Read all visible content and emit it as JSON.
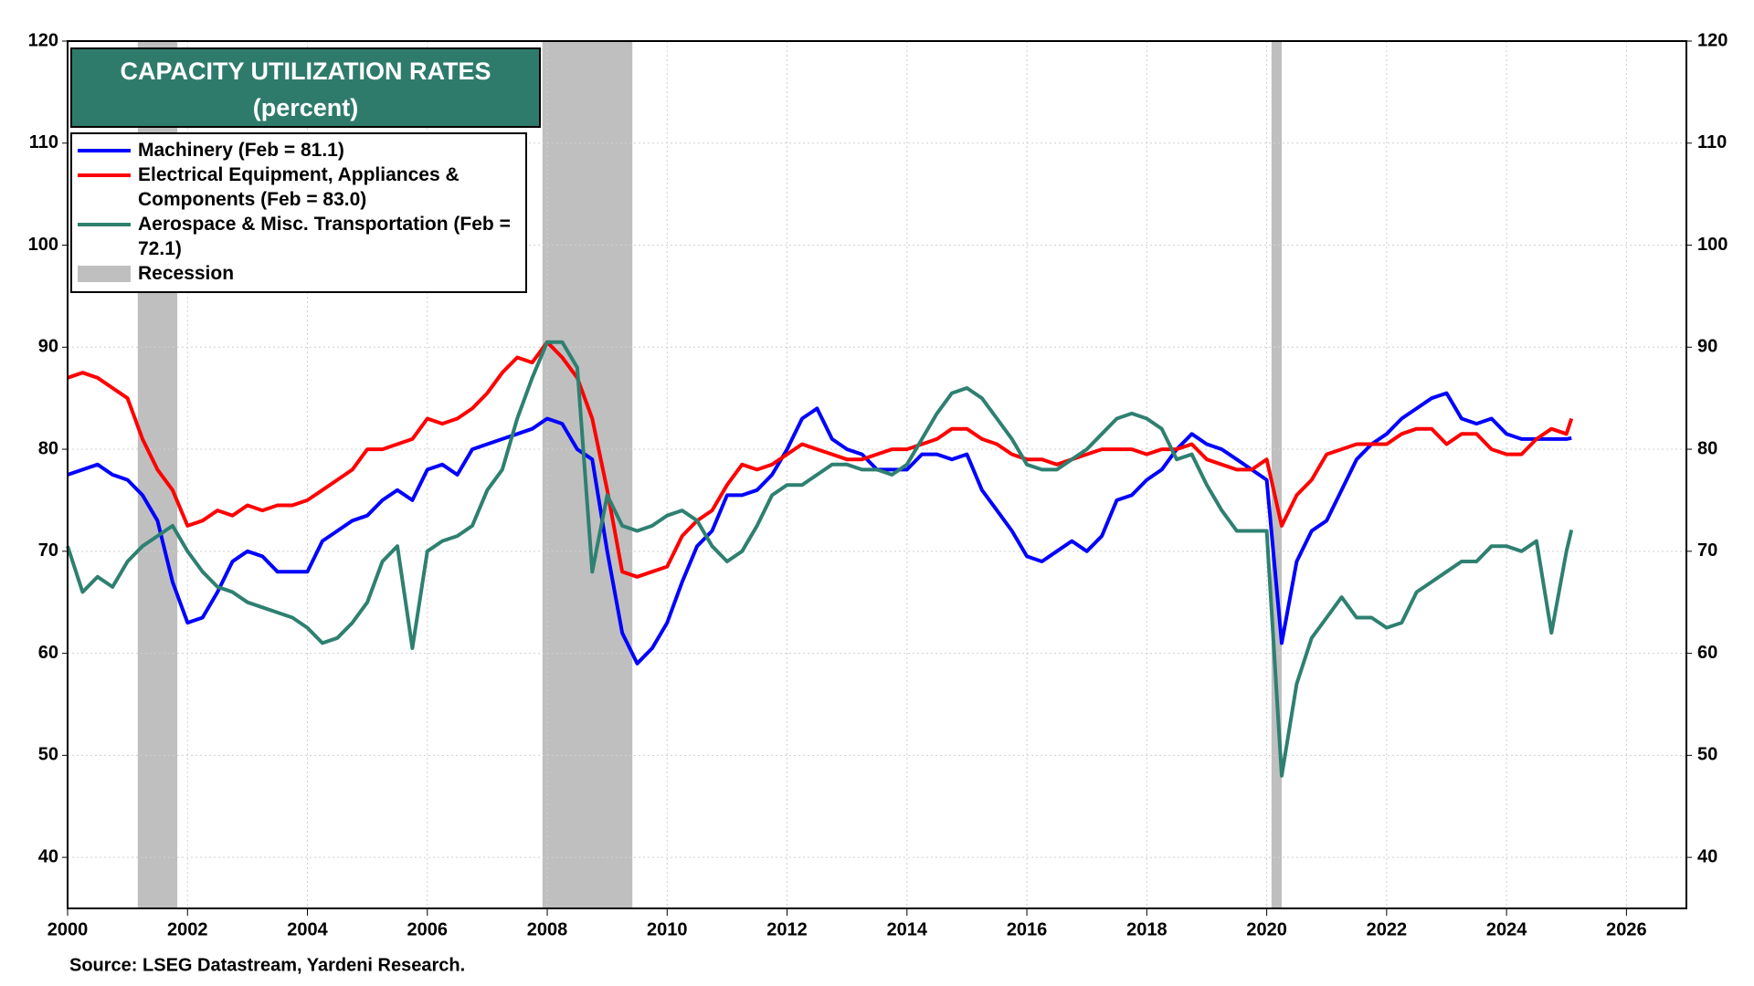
{
  "chart_data": {
    "type": "line",
    "title": "CAPACITY UTILIZATION RATES",
    "subtitle": "(percent)",
    "source": "Source: LSEG Datastream, Yardeni Research.",
    "x": [
      2000,
      2000.25,
      2000.5,
      2000.75,
      2001,
      2001.25,
      2001.5,
      2001.75,
      2002,
      2002.25,
      2002.5,
      2002.75,
      2003,
      2003.25,
      2003.5,
      2003.75,
      2004,
      2004.25,
      2004.5,
      2004.75,
      2005,
      2005.25,
      2005.5,
      2005.75,
      2006,
      2006.25,
      2006.5,
      2006.75,
      2007,
      2007.25,
      2007.5,
      2007.75,
      2008,
      2008.25,
      2008.5,
      2008.75,
      2009,
      2009.25,
      2009.5,
      2009.75,
      2010,
      2010.25,
      2010.5,
      2010.75,
      2011,
      2011.25,
      2011.5,
      2011.75,
      2012,
      2012.25,
      2012.5,
      2012.75,
      2013,
      2013.25,
      2013.5,
      2013.75,
      2014,
      2014.25,
      2014.5,
      2014.75,
      2015,
      2015.25,
      2015.5,
      2015.75,
      2016,
      2016.25,
      2016.5,
      2016.75,
      2017,
      2017.25,
      2017.5,
      2017.75,
      2018,
      2018.25,
      2018.5,
      2018.75,
      2019,
      2019.25,
      2019.5,
      2019.75,
      2020,
      2020.25,
      2020.5,
      2020.75,
      2021,
      2021.25,
      2021.5,
      2021.75,
      2022,
      2022.25,
      2022.5,
      2022.75,
      2023,
      2023.25,
      2023.5,
      2023.75,
      2024,
      2024.25,
      2024.5,
      2024.75,
      2025,
      2025.083
    ],
    "series": [
      {
        "name": "Machinery (Feb = 81.1)",
        "color": "#0000ff",
        "values": [
          77.5,
          78,
          78.5,
          77.5,
          77,
          75.5,
          73,
          67,
          63,
          63.5,
          66,
          69,
          70,
          69.5,
          68,
          68,
          68,
          71,
          72,
          73,
          73.5,
          75,
          76,
          75,
          78,
          78.5,
          77.5,
          80,
          80.5,
          81,
          81.5,
          82,
          83,
          82.5,
          80,
          79,
          70,
          62,
          59,
          60.5,
          63,
          67,
          70.5,
          72,
          75.5,
          75.5,
          76,
          77.5,
          80,
          83,
          84,
          81,
          80,
          79.5,
          78,
          78,
          78,
          79.5,
          79.5,
          79,
          79.5,
          76,
          74,
          72,
          69.5,
          69,
          70,
          71,
          70,
          71.5,
          75,
          75.5,
          77,
          78,
          80,
          81.5,
          80.5,
          80,
          79,
          78,
          77,
          61,
          69,
          72,
          73,
          76,
          79,
          80.5,
          81.5,
          83,
          84,
          85,
          85.5,
          83,
          82.5,
          83,
          81.5,
          81,
          81,
          81,
          81,
          81.1
        ]
      },
      {
        "name": "Electrical Equipment, Appliances & Components (Feb = 83.0)",
        "color": "#ff0000",
        "values": [
          87,
          87.5,
          87,
          86,
          85,
          81,
          78,
          76,
          72.5,
          73,
          74,
          73.5,
          74.5,
          74,
          74.5,
          74.5,
          75,
          76,
          77,
          78,
          80,
          80,
          80.5,
          81,
          83,
          82.5,
          83,
          84,
          85.5,
          87.5,
          89,
          88.5,
          90.5,
          89,
          87,
          83,
          76,
          68,
          67.5,
          68,
          68.5,
          71.5,
          73,
          74,
          76.5,
          78.5,
          78,
          78.5,
          79.5,
          80.5,
          80,
          79.5,
          79,
          79,
          79.5,
          80,
          80,
          80.5,
          81,
          82,
          82,
          81,
          80.5,
          79.5,
          79,
          79,
          78.5,
          79,
          79.5,
          80,
          80,
          80,
          79.5,
          80,
          80,
          80.5,
          79,
          78.5,
          78,
          78,
          79,
          72.5,
          75.5,
          77,
          79.5,
          80,
          80.5,
          80.5,
          80.5,
          81.5,
          82,
          82,
          80.5,
          81.5,
          81.5,
          80,
          79.5,
          79.5,
          81,
          82,
          81.5,
          83
        ]
      },
      {
        "name": "Aerospace & Misc. Transportation (Feb = 72.1)",
        "color": "#2e8070",
        "values": [
          70.5,
          66,
          67.5,
          66.5,
          69,
          70.5,
          71.5,
          72.5,
          70,
          68,
          66.5,
          66,
          65,
          64.5,
          64,
          63.5,
          62.5,
          61,
          61.5,
          63,
          65,
          69,
          70.5,
          60.5,
          70,
          71,
          71.5,
          72.5,
          76,
          78,
          83,
          87,
          90.5,
          90.5,
          88,
          68,
          75.5,
          72.5,
          72,
          72.5,
          73.5,
          74,
          73,
          70.5,
          69,
          70,
          72.5,
          75.5,
          76.5,
          76.5,
          77.5,
          78.5,
          78.5,
          78,
          78,
          77.5,
          78.5,
          81,
          83.5,
          85.5,
          86,
          85,
          83,
          81,
          78.5,
          78,
          78,
          79,
          80,
          81.5,
          83,
          83.5,
          83,
          82,
          79,
          79.5,
          76.5,
          74,
          72,
          72,
          72,
          48,
          57,
          61.5,
          63.5,
          65.5,
          63.5,
          63.5,
          62.5,
          63,
          66,
          67,
          68,
          69,
          69,
          70.5,
          70.5,
          70,
          71,
          62,
          70,
          72.1
        ]
      }
    ],
    "recession_label": "Recession",
    "recession_color": "#bfbfbf",
    "recessions": [
      [
        2001.17,
        2001.83
      ],
      [
        2007.92,
        2009.42
      ],
      [
        2020.08,
        2020.25
      ]
    ],
    "xlim": [
      2000,
      2027
    ],
    "xticks": [
      2000,
      2002,
      2004,
      2006,
      2008,
      2010,
      2012,
      2014,
      2016,
      2018,
      2020,
      2022,
      2024,
      2026
    ],
    "ylim": [
      35,
      120
    ],
    "yticks": [
      40,
      50,
      60,
      70,
      80,
      90,
      100,
      110,
      120
    ],
    "y2lim": [
      35,
      120
    ],
    "y2ticks": [
      40,
      50,
      60,
      70,
      80,
      90,
      100,
      110,
      120
    ],
    "grid": true
  }
}
